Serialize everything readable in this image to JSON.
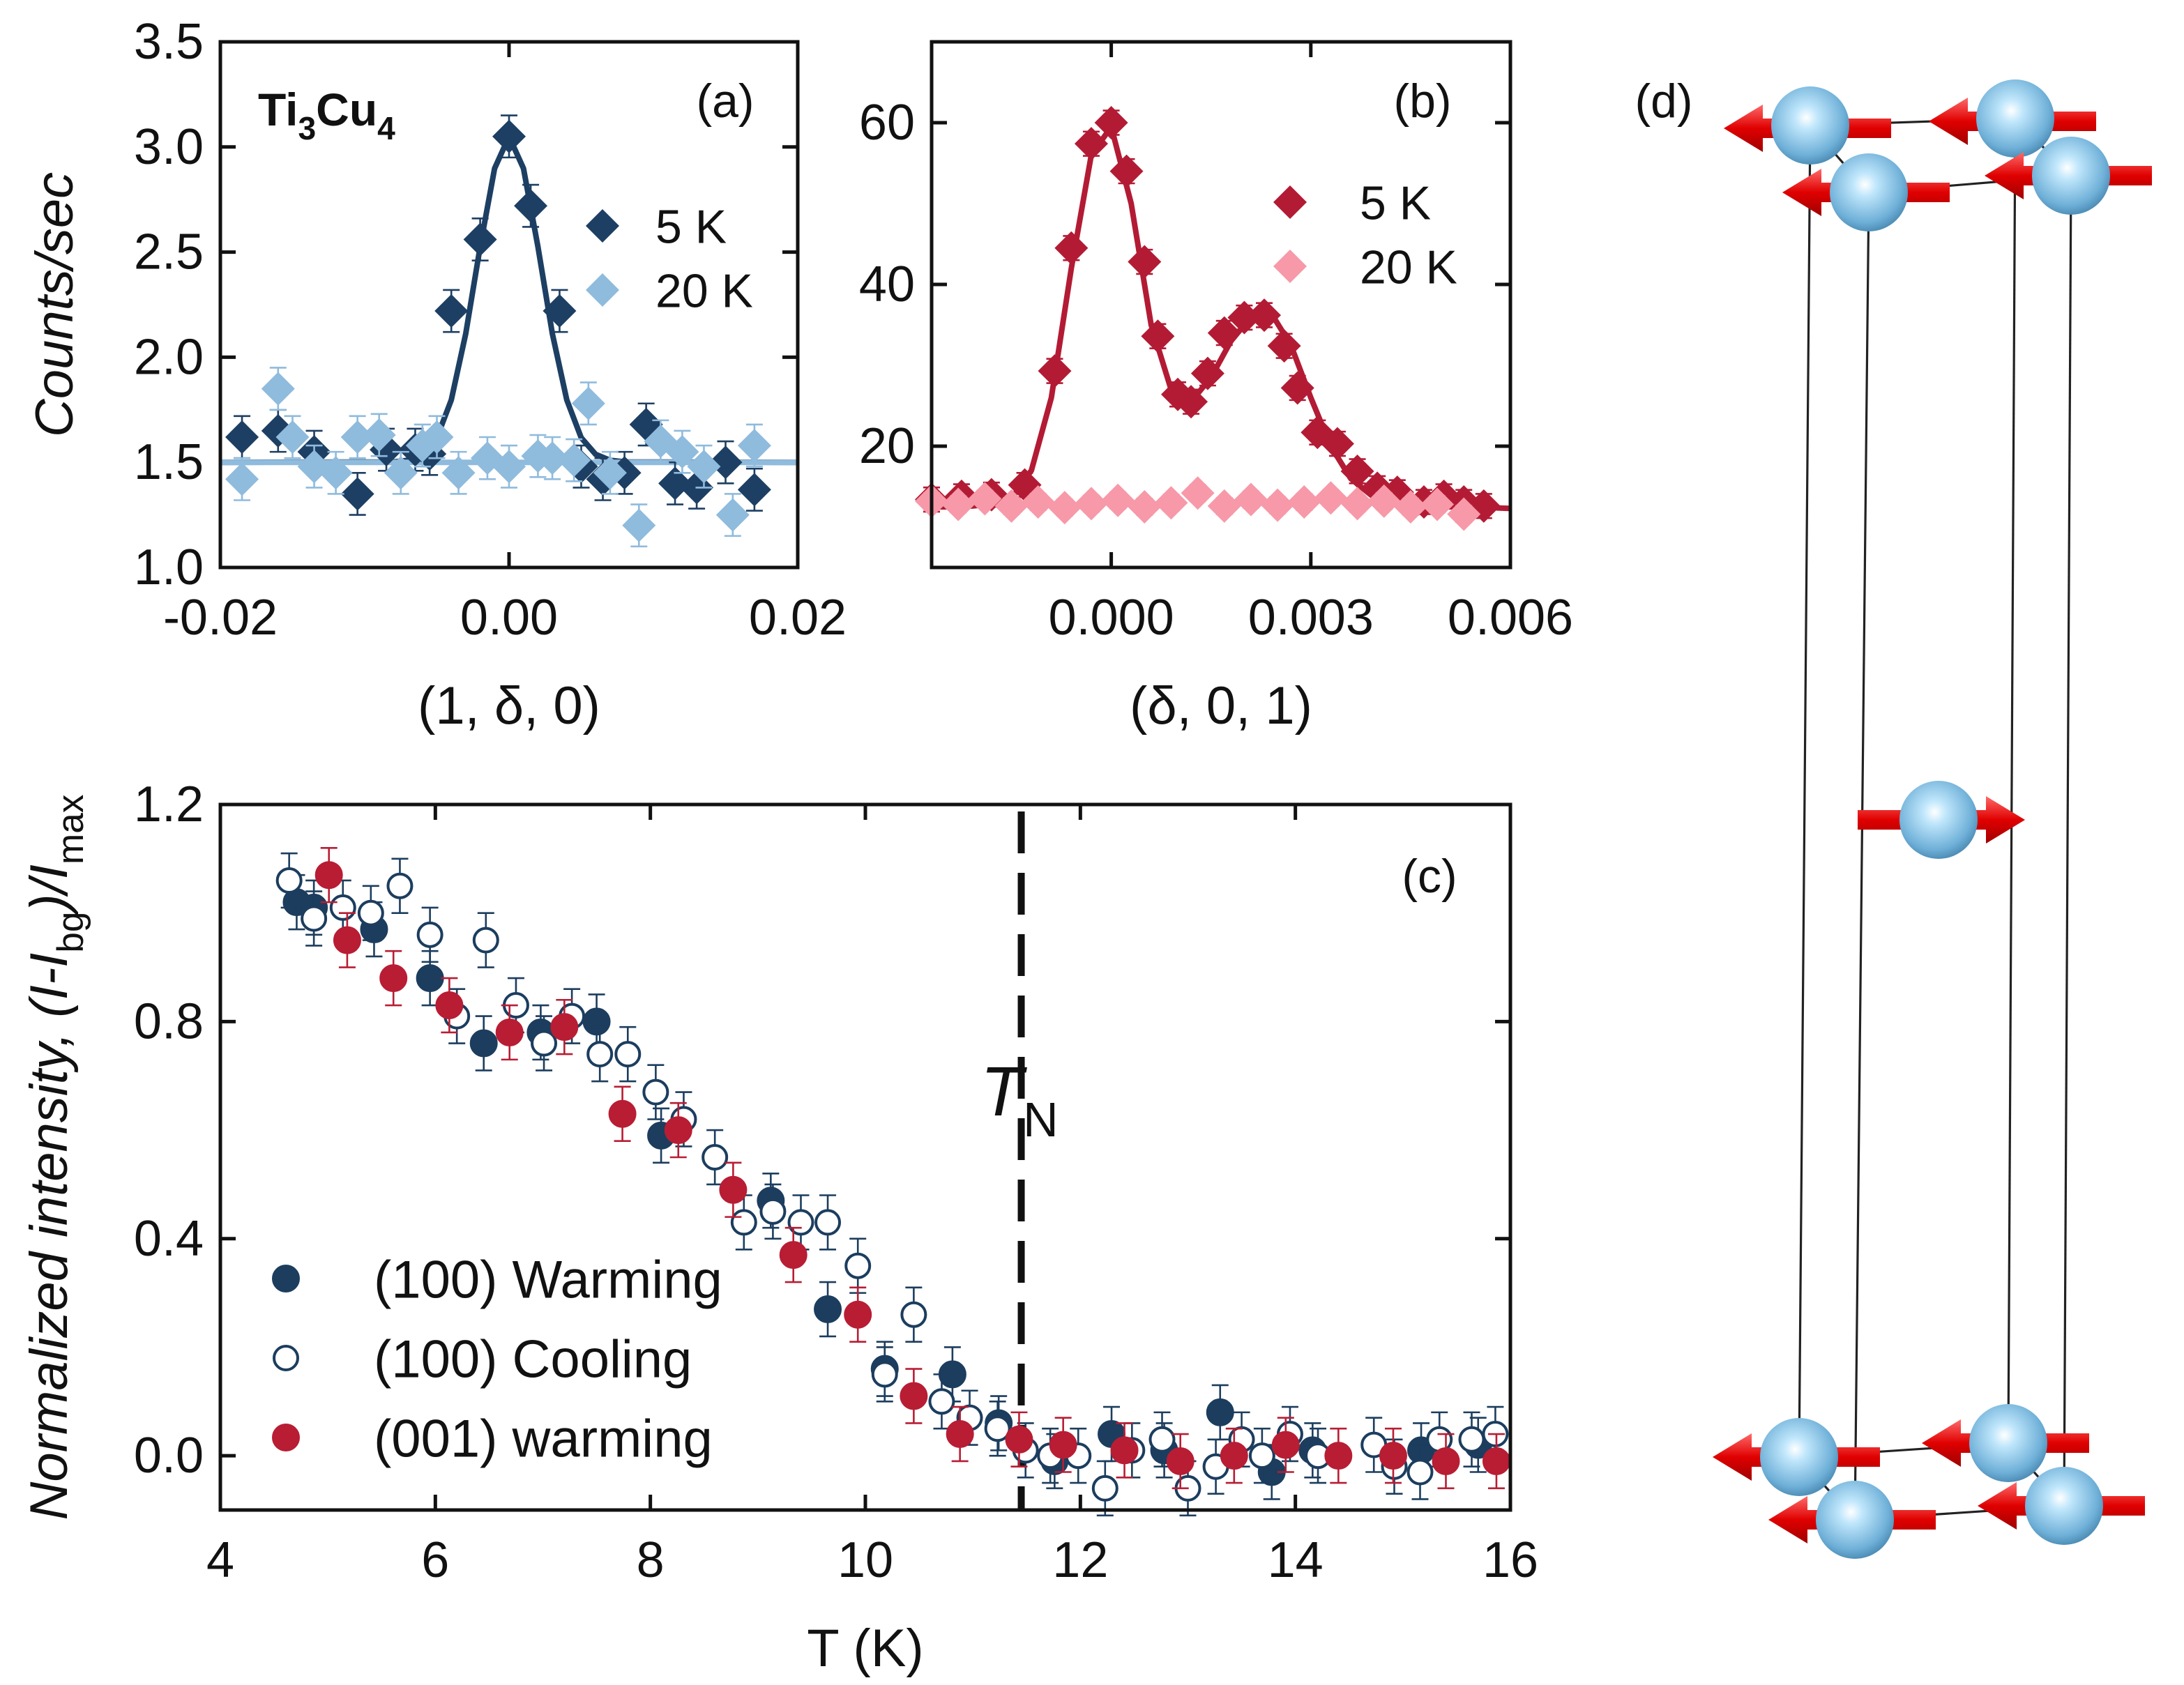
{
  "chart_data": [
    {
      "type": "scatter",
      "y_label": "Counts/sec",
      "x_label": "(1, δ, 0)",
      "annotations": [
        "(a)",
        [
          "Ti",
          "3",
          "Cu",
          "4"
        ]
      ],
      "xlim": [
        -0.02,
        0.02
      ],
      "ylim": [
        1.0,
        3.5
      ],
      "xticks": [
        -0.02,
        {
          "value": 0,
          "label": "0.00"
        },
        0.02
      ],
      "yticks": [
        {
          "value": 1,
          "label": "1.0"
        },
        1.5,
        {
          "value": 2,
          "label": "2.0"
        },
        2.5,
        {
          "value": 3,
          "label": "3.0"
        },
        3.5
      ],
      "series": [
        {
          "name": "5 K",
          "color": "#1d3f63",
          "marker": "diamond",
          "error": 0.1,
          "x": [
            -0.0185,
            -0.016,
            -0.0135,
            -0.0105,
            -0.0085,
            -0.0065,
            -0.0055,
            -0.004,
            -0.002,
            0.0,
            0.0015,
            0.0035,
            0.005,
            0.0065,
            0.008,
            0.0095,
            0.0115,
            0.013,
            0.015,
            0.017
          ],
          "values": [
            1.62,
            1.65,
            1.55,
            1.35,
            1.56,
            1.56,
            1.54,
            2.22,
            2.56,
            3.05,
            2.72,
            2.22,
            1.48,
            1.42,
            1.45,
            1.68,
            1.4,
            1.38,
            1.5,
            1.37
          ],
          "fit_x": [
            -0.02,
            -0.008,
            -0.007,
            -0.006,
            -0.005,
            -0.004,
            -0.003,
            -0.002,
            -0.001,
            0,
            0.001,
            0.002,
            0.003,
            0.004,
            0.005,
            0.006,
            0.007,
            0.008,
            0.02
          ],
          "fit": [
            1.5,
            1.502,
            1.51,
            1.538,
            1.617,
            1.797,
            2.112,
            2.526,
            2.898,
            3.05,
            2.898,
            2.526,
            2.112,
            1.797,
            1.617,
            1.538,
            1.51,
            1.502,
            1.5
          ]
        },
        {
          "name": "20 K",
          "color": "#8fbbdd",
          "marker": "diamond",
          "error": 0.1,
          "x": [
            -0.0185,
            -0.016,
            -0.015,
            -0.0135,
            -0.012,
            -0.0105,
            -0.009,
            -0.0075,
            -0.006,
            -0.005,
            -0.0035,
            -0.0015,
            0.0,
            0.002,
            0.003,
            0.0045,
            0.0055,
            0.007,
            0.009,
            0.0105,
            0.012,
            0.0135,
            0.0155,
            0.017
          ],
          "values": [
            1.42,
            1.85,
            1.62,
            1.48,
            1.45,
            1.62,
            1.63,
            1.45,
            1.58,
            1.62,
            1.45,
            1.52,
            1.48,
            1.53,
            1.52,
            1.51,
            1.78,
            1.45,
            1.2,
            1.6,
            1.55,
            1.48,
            1.25,
            1.58
          ],
          "fit_x": [
            -0.02,
            0.02
          ],
          "fit": [
            1.5,
            1.5
          ]
        }
      ]
    },
    {
      "type": "scatter",
      "x_label": "(δ, 0, 1)",
      "annotations": [
        "(b)"
      ],
      "xlim": [
        -0.0027,
        0.006
      ],
      "ylim": [
        5,
        70
      ],
      "xticks": [
        {
          "value": 0,
          "label": "0.000"
        },
        {
          "value": 0.003,
          "label": "0.003"
        },
        {
          "value": 0.006,
          "label": "0.006"
        }
      ],
      "yticks": [
        20,
        40,
        60
      ],
      "series": [
        {
          "name": "5 K",
          "color": "#b31b34",
          "marker": "diamond",
          "error": 1.5,
          "x": [
            -0.0027,
            -0.00225,
            -0.0018,
            -0.0013,
            -0.00085,
            -0.0006,
            -0.0003,
            0,
            0.00023,
            0.0005,
            0.0007,
            0.001,
            0.0012,
            0.00145,
            0.0017,
            0.002,
            0.0023,
            0.0026,
            0.0028,
            0.0031,
            0.0034,
            0.0037,
            0.004,
            0.0043,
            0.0047,
            0.005,
            0.0053,
            0.0056
          ],
          "values": [
            13.4,
            13.8,
            14,
            15.2,
            29.3,
            44.5,
            57.4,
            60,
            54,
            42.8,
            33.6,
            26.4,
            25.5,
            29,
            34,
            35.9,
            36.2,
            32.4,
            27.2,
            21.7,
            20.3,
            16.9,
            14.8,
            14.3,
            13.1,
            13.8,
            13.1,
            12.6
          ],
          "fit_x": [
            -0.0027,
            -0.0024,
            -0.0021,
            -0.0018,
            -0.0015,
            -0.0012,
            -0.0009,
            -0.0006,
            -0.0003,
            0,
            0.0003,
            0.0006,
            0.0009,
            0.0012,
            0.0015,
            0.0018,
            0.0021,
            0.0024,
            0.0027,
            0.003,
            0.0033,
            0.0036,
            0.0039,
            0.0042,
            0.0045,
            0.0048,
            0.0051,
            0.0054,
            0.0057,
            0.006
          ],
          "fit": [
            12.5,
            12.5,
            12.6,
            12.8,
            13.5,
            17,
            26,
            42,
            56,
            59.5,
            50,
            35,
            27,
            25.5,
            28.5,
            33,
            36,
            36.5,
            32.5,
            26,
            20,
            16,
            14,
            13,
            12.7,
            12.5,
            12.5,
            12.4,
            12.4,
            12.3
          ]
        },
        {
          "name": "20 K",
          "color": "#f799a8",
          "marker": "diamond",
          "error": 1,
          "x": [
            -0.0027,
            -0.0023,
            -0.0019,
            -0.0015,
            -0.0011,
            -0.0007,
            -0.0003,
            0.0001,
            0.0005,
            0.0009,
            0.0013,
            0.0017,
            0.0021,
            0.0025,
            0.0029,
            0.0033,
            0.0037,
            0.0041,
            0.0045,
            0.0049,
            0.0053
          ],
          "values": [
            13.2,
            12.8,
            13.5,
            12.6,
            13.1,
            12.4,
            12.9,
            13.3,
            12.5,
            13.0,
            14.2,
            12.6,
            13.4,
            12.7,
            13.1,
            13.6,
            12.9,
            13.2,
            12.5,
            12.8,
            11.6
          ]
        }
      ]
    },
    {
      "type": "scatter",
      "y_label": [
        "Normalized intensity, (I-I",
        "bg",
        ")/I",
        "max"
      ],
      "x_label": "T (K)",
      "annotations": [
        "(c)",
        [
          "T",
          "N"
        ]
      ],
      "xlim": [
        4,
        16
      ],
      "ylim": [
        -0.1,
        1.2
      ],
      "xticks": [
        4,
        6,
        8,
        10,
        12,
        14,
        16
      ],
      "yticks": [
        {
          "value": 0,
          "label": "0.0"
        },
        0.4,
        0.8,
        1.2
      ],
      "vline_x": 11.45,
      "legend": "lower left",
      "series": [
        {
          "name": "(100) Warming",
          "color": "#1c3d5e",
          "marker": "circle",
          "error": 0.05,
          "x": [
            4.71,
            4.87,
            5.43,
            5.95,
            6.45,
            6.98,
            7.5,
            8.1,
            9.12,
            9.65,
            10.18,
            10.81,
            11.24,
            11.76,
            12.29,
            12.78,
            13.3,
            13.78,
            14.16,
            15.17,
            15.7
          ],
          "values": [
            1.02,
            1.01,
            0.97,
            0.88,
            0.76,
            0.78,
            0.8,
            0.59,
            0.47,
            0.27,
            0.16,
            0.15,
            0.06,
            -0.01,
            0.04,
            0.01,
            0.08,
            -0.03,
            0.01,
            0.01,
            0.02
          ]
        },
        {
          "name": "(100) Cooling",
          "color": "#1c3d5e",
          "marker": "circle-open",
          "error": 0.05,
          "x": [
            4.64,
            4.87,
            5.14,
            5.4,
            5.67,
            5.95,
            6.2,
            6.47,
            6.75,
            7.01,
            7.27,
            7.53,
            7.79,
            8.05,
            8.31,
            8.6,
            8.87,
            9.14,
            9.4,
            9.65,
            9.93,
            10.18,
            10.45,
            10.71,
            10.97,
            11.23,
            11.49,
            11.72,
            11.98,
            12.23,
            12.48,
            12.76,
            13.0,
            13.26,
            13.5,
            13.69,
            13.95,
            14.21,
            14.73,
            14.92,
            15.16,
            15.34,
            15.64,
            15.86
          ],
          "values": [
            1.06,
            0.99,
            1.01,
            1.0,
            1.05,
            0.96,
            0.81,
            0.95,
            0.83,
            0.76,
            0.81,
            0.74,
            0.74,
            0.67,
            0.62,
            0.55,
            0.43,
            0.45,
            0.43,
            0.43,
            0.35,
            0.15,
            0.26,
            0.1,
            0.07,
            0.05,
            0.01,
            0.0,
            0.0,
            -0.06,
            0.01,
            0.03,
            -0.06,
            -0.02,
            0.03,
            0.0,
            0.04,
            0.0,
            0.02,
            -0.02,
            -0.03,
            0.03,
            0.03,
            0.04
          ]
        },
        {
          "name": "(001) warming",
          "color": "#b81d34",
          "marker": "circle",
          "error": 0.05,
          "x": [
            5.01,
            5.18,
            5.61,
            6.13,
            6.69,
            7.2,
            7.74,
            8.26,
            8.77,
            9.33,
            9.93,
            10.45,
            10.88,
            11.43,
            11.84,
            12.41,
            12.93,
            13.43,
            13.91,
            14.4,
            14.91,
            15.4,
            15.87
          ],
          "values": [
            1.07,
            0.95,
            0.88,
            0.83,
            0.78,
            0.79,
            0.63,
            0.6,
            0.49,
            0.37,
            0.26,
            0.11,
            0.04,
            0.03,
            0.02,
            0.01,
            -0.01,
            0.0,
            0.02,
            0.0,
            0.0,
            -0.01,
            -0.01
          ]
        }
      ]
    }
  ],
  "diagram": {
    "label": "(d)"
  }
}
